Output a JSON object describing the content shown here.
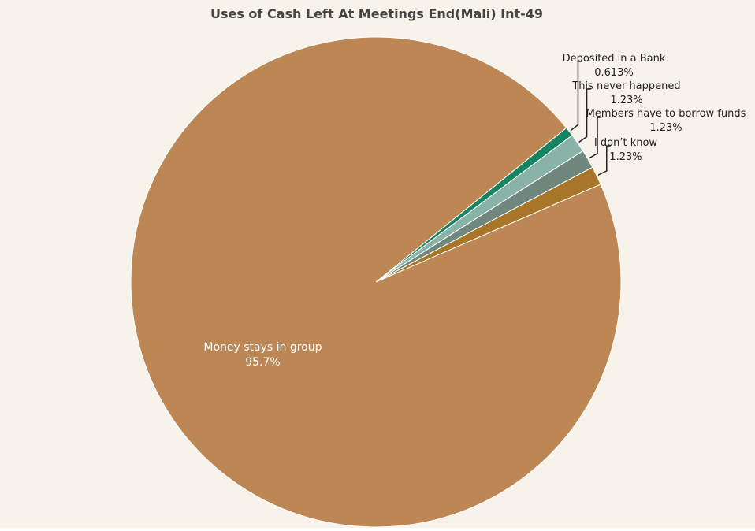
{
  "colors": {
    "background": "#f8f3ea",
    "title": "#444444"
  },
  "chart_data": {
    "type": "pie",
    "title": "Uses of Cash Left At Meetings End(Mali) Int-49",
    "slices": [
      {
        "label": "Deposited in a Bank",
        "value": 0.613,
        "value_label": "0.613%",
        "color": "#168460"
      },
      {
        "label": "This never happened",
        "value": 1.23,
        "value_label": "1.23%",
        "color": "#88b3a6"
      },
      {
        "label": "Members have to borrow funds",
        "value": 1.23,
        "value_label": "1.23%",
        "color": "#70877d"
      },
      {
        "label": "I don’t know",
        "value": 1.23,
        "value_label": "1.23%",
        "color": "#a87628"
      },
      {
        "label": "Money stays in group",
        "value": 95.7,
        "value_label": "95.7%",
        "color": "#bc8755"
      }
    ]
  }
}
